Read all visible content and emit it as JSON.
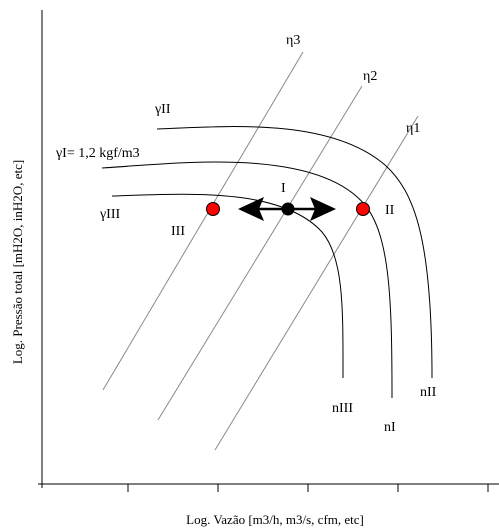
{
  "axes": {
    "x_label": "Log. Vazão [m3/h, m3/s, cfm, etc]",
    "y_label": "Log. Pressão total [mH2O, inH2O, etc]"
  },
  "efficiency_lines": [
    {
      "id": "eta3",
      "label": "η3"
    },
    {
      "id": "eta2",
      "label": "η2"
    },
    {
      "id": "eta1",
      "label": "η1"
    }
  ],
  "density_curves": [
    {
      "id": "gamma-II",
      "label": "γII",
      "end_label": "nII"
    },
    {
      "id": "gamma-I",
      "label": "γI= 1,2 kgf/m3",
      "end_label": "nI"
    },
    {
      "id": "gamma-III",
      "label": "γIII",
      "end_label": "nIII"
    }
  ],
  "operating_points": [
    {
      "id": "I",
      "label": "I",
      "color": "#000000"
    },
    {
      "id": "II",
      "label": "II",
      "color": "#ff0000"
    },
    {
      "id": "III",
      "label": "III",
      "color": "#ff0000"
    }
  ],
  "colors": {
    "curve": "#000000",
    "efficiency_line": "#8a8a8a",
    "point_red": "#ff0000",
    "point_black": "#000000"
  }
}
